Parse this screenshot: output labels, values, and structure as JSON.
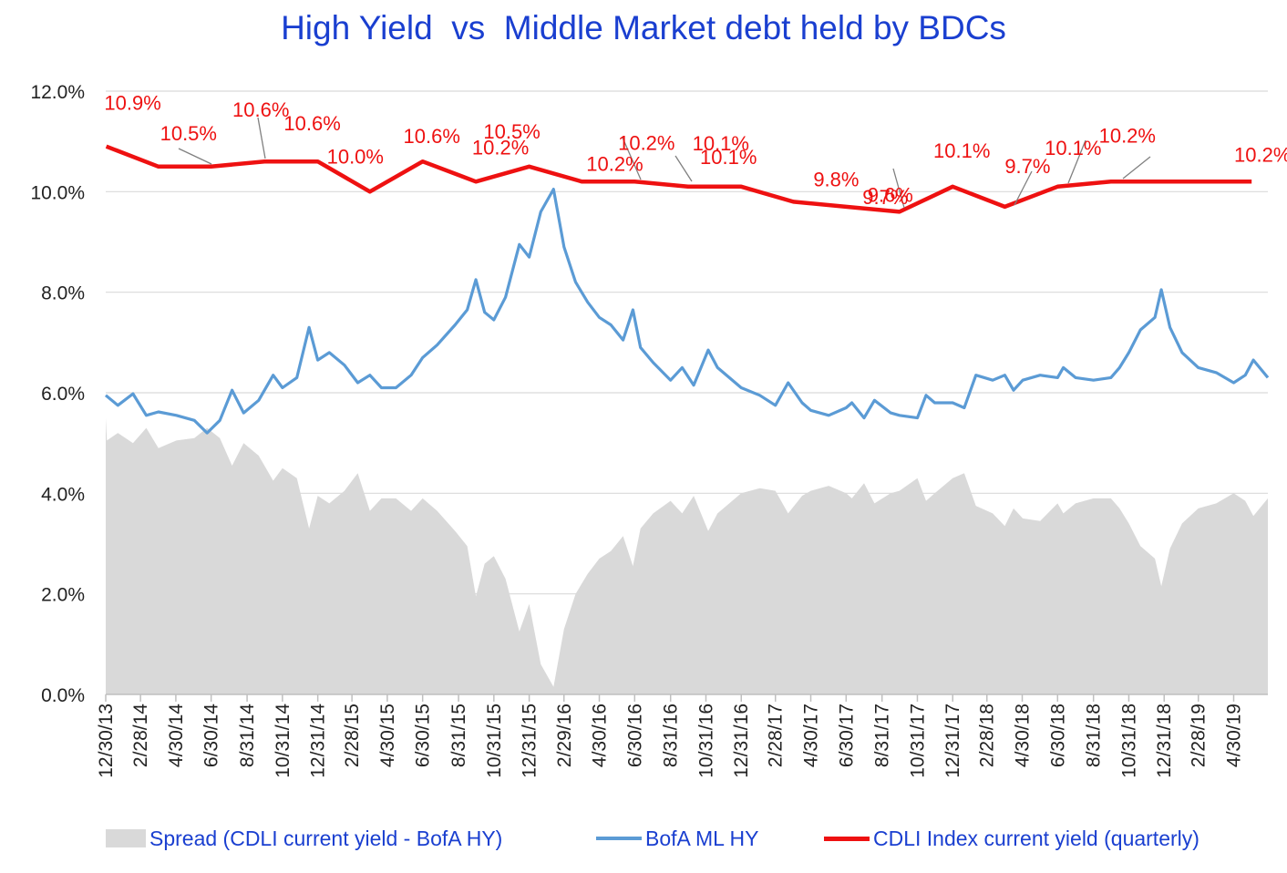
{
  "title": "High Yield  vs  Middle Market debt held by BDCs",
  "legend": [
    {
      "label": "Spread (CDLI current yield - BofA HY)",
      "kind": "area",
      "color": "#d9d9d9"
    },
    {
      "label": "BofA ML HY",
      "kind": "line",
      "color": "#5b9bd5"
    },
    {
      "label": "CDLI Index current yield (quarterly)",
      "kind": "line",
      "color": "#ee1111"
    }
  ],
  "chart_data": {
    "type": "line",
    "title": "High Yield  vs  Middle Market debt held by BDCs",
    "x_tick_labels": [
      "12/30/13",
      "2/28/14",
      "4/30/14",
      "6/30/14",
      "8/31/14",
      "10/31/14",
      "12/31/14",
      "2/28/15",
      "4/30/15",
      "6/30/15",
      "8/31/15",
      "10/31/15",
      "12/31/15",
      "2/29/16",
      "4/30/16",
      "6/30/16",
      "8/31/16",
      "10/31/16",
      "12/31/16",
      "2/28/17",
      "4/30/17",
      "6/30/17",
      "8/31/17",
      "10/31/17",
      "12/31/17",
      "2/28/18",
      "4/30/18",
      "6/30/18",
      "8/31/18",
      "10/31/18",
      "12/31/18",
      "2/28/19",
      "4/30/19"
    ],
    "x_range": [
      "2013-12-30",
      "2019-06-28"
    ],
    "y_tick_labels": [
      "0.0%",
      "2.0%",
      "4.0%",
      "6.0%",
      "8.0%",
      "10.0%",
      "12.0%"
    ],
    "ylim": [
      0,
      12
    ],
    "grid": "horizontal",
    "legend_position": "bottom",
    "colors": {
      "spread": "#d9d9d9",
      "hy": "#5b9bd5",
      "cdli": "#ee1111",
      "label": "#ee1111",
      "leader": "#808080",
      "axis_text": "#222222"
    },
    "series": [
      {
        "name": "CDLI Index current yield (quarterly)",
        "kind": "line",
        "points": [
          {
            "x": "2013-12-31",
            "y": 10.9,
            "label": "10.9%"
          },
          {
            "x": "2014-03-31",
            "y": 10.5,
            "label": "10.5%"
          },
          {
            "x": "2014-06-30",
            "y": 10.5,
            "label": "10.5%"
          },
          {
            "x": "2014-09-30",
            "y": 10.6,
            "label": "10.6%"
          },
          {
            "x": "2014-12-31",
            "y": 10.6,
            "label": "10.6%"
          },
          {
            "x": "2015-03-31",
            "y": 10.0,
            "label": "10.0%"
          },
          {
            "x": "2015-06-30",
            "y": 10.6,
            "label": "10.6%"
          },
          {
            "x": "2015-09-30",
            "y": 10.2,
            "label": "10.2%"
          },
          {
            "x": "2015-12-31",
            "y": 10.5,
            "label": "10.5%"
          },
          {
            "x": "2016-03-31",
            "y": 10.2,
            "label": "10.2%"
          },
          {
            "x": "2016-06-30",
            "y": 10.2,
            "label": "10.2%"
          },
          {
            "x": "2016-09-30",
            "y": 10.1,
            "label": "10.1%"
          },
          {
            "x": "2016-12-31",
            "y": 10.1,
            "label": "10.1%"
          },
          {
            "x": "2017-03-31",
            "y": 9.8,
            "label": "9.8%"
          },
          {
            "x": "2017-06-30",
            "y": 9.7,
            "label": "9.7%"
          },
          {
            "x": "2017-09-30",
            "y": 9.6,
            "label": "9.6%"
          },
          {
            "x": "2017-12-31",
            "y": 10.1,
            "label": "10.1%"
          },
          {
            "x": "2018-03-31",
            "y": 9.7,
            "label": "9.7%"
          },
          {
            "x": "2018-06-30",
            "y": 10.1,
            "label": "10.1%"
          },
          {
            "x": "2018-09-30",
            "y": 10.2,
            "label": "10.2%"
          },
          {
            "x": "2018-12-31",
            "y": 10.2,
            "label": "10.2%"
          },
          {
            "x": "2019-03-31",
            "y": 10.2,
            "label": "10.2%"
          },
          {
            "x": "2019-05-31",
            "y": 10.2,
            "label": "10.2%"
          }
        ]
      },
      {
        "name": "BofA ML HY",
        "kind": "line",
        "points": [
          [
            "2013-12-30",
            5.95
          ],
          [
            "2014-01-20",
            5.75
          ],
          [
            "2014-02-15",
            5.98
          ],
          [
            "2014-03-10",
            5.55
          ],
          [
            "2014-03-31",
            5.62
          ],
          [
            "2014-05-01",
            5.55
          ],
          [
            "2014-06-01",
            5.45
          ],
          [
            "2014-06-23",
            5.2
          ],
          [
            "2014-07-15",
            5.45
          ],
          [
            "2014-08-05",
            6.05
          ],
          [
            "2014-08-25",
            5.6
          ],
          [
            "2014-09-20",
            5.85
          ],
          [
            "2014-10-15",
            6.35
          ],
          [
            "2014-10-31",
            6.1
          ],
          [
            "2014-11-25",
            6.3
          ],
          [
            "2014-12-16",
            7.3
          ],
          [
            "2014-12-31",
            6.65
          ],
          [
            "2015-01-20",
            6.8
          ],
          [
            "2015-02-15",
            6.55
          ],
          [
            "2015-03-10",
            6.2
          ],
          [
            "2015-03-31",
            6.35
          ],
          [
            "2015-04-20",
            6.1
          ],
          [
            "2015-05-15",
            6.1
          ],
          [
            "2015-06-10",
            6.35
          ],
          [
            "2015-06-30",
            6.7
          ],
          [
            "2015-07-25",
            6.95
          ],
          [
            "2015-08-25",
            7.35
          ],
          [
            "2015-09-15",
            7.65
          ],
          [
            "2015-09-30",
            8.25
          ],
          [
            "2015-10-15",
            7.6
          ],
          [
            "2015-10-31",
            7.45
          ],
          [
            "2015-11-20",
            7.9
          ],
          [
            "2015-12-14",
            8.95
          ],
          [
            "2015-12-31",
            8.7
          ],
          [
            "2016-01-20",
            9.6
          ],
          [
            "2016-02-11",
            10.05
          ],
          [
            "2016-02-29",
            8.9
          ],
          [
            "2016-03-20",
            8.2
          ],
          [
            "2016-04-10",
            7.8
          ],
          [
            "2016-04-30",
            7.5
          ],
          [
            "2016-05-20",
            7.35
          ],
          [
            "2016-06-10",
            7.05
          ],
          [
            "2016-06-27",
            7.65
          ],
          [
            "2016-07-10",
            6.9
          ],
          [
            "2016-08-01",
            6.6
          ],
          [
            "2016-08-31",
            6.25
          ],
          [
            "2016-09-20",
            6.5
          ],
          [
            "2016-10-10",
            6.15
          ],
          [
            "2016-11-04",
            6.85
          ],
          [
            "2016-11-20",
            6.5
          ],
          [
            "2016-12-31",
            6.1
          ],
          [
            "2017-02-01",
            5.95
          ],
          [
            "2017-02-28",
            5.75
          ],
          [
            "2017-03-22",
            6.2
          ],
          [
            "2017-04-15",
            5.8
          ],
          [
            "2017-04-30",
            5.65
          ],
          [
            "2017-05-31",
            5.55
          ],
          [
            "2017-06-30",
            5.7
          ],
          [
            "2017-07-10",
            5.8
          ],
          [
            "2017-07-31",
            5.5
          ],
          [
            "2017-08-18",
            5.85
          ],
          [
            "2017-09-15",
            5.6
          ],
          [
            "2017-09-30",
            5.55
          ],
          [
            "2017-10-31",
            5.5
          ],
          [
            "2017-11-15",
            5.95
          ],
          [
            "2017-11-30",
            5.8
          ],
          [
            "2017-12-31",
            5.8
          ],
          [
            "2018-01-20",
            5.7
          ],
          [
            "2018-02-09",
            6.35
          ],
          [
            "2018-03-10",
            6.25
          ],
          [
            "2018-03-31",
            6.35
          ],
          [
            "2018-04-15",
            6.05
          ],
          [
            "2018-05-01",
            6.25
          ],
          [
            "2018-05-31",
            6.35
          ],
          [
            "2018-06-30",
            6.3
          ],
          [
            "2018-07-10",
            6.5
          ],
          [
            "2018-07-31",
            6.3
          ],
          [
            "2018-08-31",
            6.25
          ],
          [
            "2018-09-30",
            6.3
          ],
          [
            "2018-10-15",
            6.5
          ],
          [
            "2018-10-31",
            6.8
          ],
          [
            "2018-11-20",
            7.25
          ],
          [
            "2018-12-15",
            7.5
          ],
          [
            "2018-12-26",
            8.05
          ],
          [
            "2019-01-10",
            7.3
          ],
          [
            "2019-01-31",
            6.8
          ],
          [
            "2019-02-28",
            6.5
          ],
          [
            "2019-03-31",
            6.4
          ],
          [
            "2019-04-30",
            6.2
          ],
          [
            "2019-05-20",
            6.35
          ],
          [
            "2019-06-03",
            6.65
          ],
          [
            "2019-06-28",
            6.3
          ]
        ]
      },
      {
        "name": "Spread (CDLI current yield - BofA HY)",
        "kind": "area",
        "points": [
          [
            "2013-12-30",
            5.5
          ],
          [
            "2014-01-01",
            5.05
          ],
          [
            "2014-01-20",
            5.2
          ],
          [
            "2014-02-15",
            5.0
          ],
          [
            "2014-03-10",
            5.3
          ],
          [
            "2014-03-31",
            4.9
          ],
          [
            "2014-05-01",
            5.05
          ],
          [
            "2014-06-01",
            5.1
          ],
          [
            "2014-06-23",
            5.3
          ],
          [
            "2014-07-15",
            5.1
          ],
          [
            "2014-08-05",
            4.55
          ],
          [
            "2014-08-25",
            5.0
          ],
          [
            "2014-09-20",
            4.75
          ],
          [
            "2014-10-15",
            4.25
          ],
          [
            "2014-10-31",
            4.5
          ],
          [
            "2014-11-25",
            4.3
          ],
          [
            "2014-12-16",
            3.3
          ],
          [
            "2014-12-31",
            3.95
          ],
          [
            "2015-01-20",
            3.8
          ],
          [
            "2015-02-15",
            4.05
          ],
          [
            "2015-03-10",
            4.4
          ],
          [
            "2015-03-31",
            3.65
          ],
          [
            "2015-04-20",
            3.9
          ],
          [
            "2015-05-15",
            3.9
          ],
          [
            "2015-06-10",
            3.65
          ],
          [
            "2015-06-30",
            3.9
          ],
          [
            "2015-07-25",
            3.65
          ],
          [
            "2015-08-25",
            3.25
          ],
          [
            "2015-09-15",
            2.95
          ],
          [
            "2015-09-30",
            1.95
          ],
          [
            "2015-10-15",
            2.6
          ],
          [
            "2015-10-31",
            2.75
          ],
          [
            "2015-11-20",
            2.3
          ],
          [
            "2015-12-14",
            1.25
          ],
          [
            "2015-12-31",
            1.8
          ],
          [
            "2016-01-20",
            0.6
          ],
          [
            "2016-02-11",
            0.15
          ],
          [
            "2016-02-29",
            1.3
          ],
          [
            "2016-03-20",
            2.0
          ],
          [
            "2016-04-10",
            2.4
          ],
          [
            "2016-04-30",
            2.7
          ],
          [
            "2016-05-20",
            2.85
          ],
          [
            "2016-06-10",
            3.15
          ],
          [
            "2016-06-27",
            2.55
          ],
          [
            "2016-07-10",
            3.3
          ],
          [
            "2016-08-01",
            3.6
          ],
          [
            "2016-08-31",
            3.85
          ],
          [
            "2016-09-20",
            3.6
          ],
          [
            "2016-10-10",
            3.95
          ],
          [
            "2016-11-04",
            3.25
          ],
          [
            "2016-11-20",
            3.6
          ],
          [
            "2016-12-31",
            4.0
          ],
          [
            "2017-02-01",
            4.1
          ],
          [
            "2017-02-28",
            4.05
          ],
          [
            "2017-03-22",
            3.6
          ],
          [
            "2017-04-15",
            3.95
          ],
          [
            "2017-04-30",
            4.05
          ],
          [
            "2017-05-31",
            4.15
          ],
          [
            "2017-06-30",
            4.0
          ],
          [
            "2017-07-10",
            3.9
          ],
          [
            "2017-07-31",
            4.2
          ],
          [
            "2017-08-18",
            3.8
          ],
          [
            "2017-09-15",
            4.0
          ],
          [
            "2017-09-30",
            4.05
          ],
          [
            "2017-10-31",
            4.3
          ],
          [
            "2017-11-15",
            3.85
          ],
          [
            "2017-11-30",
            4.0
          ],
          [
            "2017-12-31",
            4.3
          ],
          [
            "2018-01-20",
            4.4
          ],
          [
            "2018-02-09",
            3.75
          ],
          [
            "2018-03-10",
            3.6
          ],
          [
            "2018-03-31",
            3.35
          ],
          [
            "2018-04-15",
            3.7
          ],
          [
            "2018-05-01",
            3.5
          ],
          [
            "2018-05-31",
            3.45
          ],
          [
            "2018-06-30",
            3.8
          ],
          [
            "2018-07-10",
            3.6
          ],
          [
            "2018-07-31",
            3.8
          ],
          [
            "2018-08-31",
            3.9
          ],
          [
            "2018-09-30",
            3.9
          ],
          [
            "2018-10-15",
            3.7
          ],
          [
            "2018-10-31",
            3.4
          ],
          [
            "2018-11-20",
            2.95
          ],
          [
            "2018-12-15",
            2.7
          ],
          [
            "2018-12-26",
            2.15
          ],
          [
            "2019-01-10",
            2.9
          ],
          [
            "2019-01-31",
            3.4
          ],
          [
            "2019-02-28",
            3.7
          ],
          [
            "2019-03-31",
            3.8
          ],
          [
            "2019-04-30",
            4.0
          ],
          [
            "2019-05-20",
            3.85
          ],
          [
            "2019-06-03",
            3.55
          ],
          [
            "2019-06-28",
            3.9
          ]
        ]
      }
    ]
  }
}
